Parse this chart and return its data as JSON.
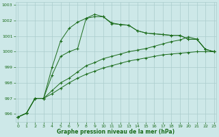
{
  "xlabel": "Graphe pression niveau de la mer (hPa)",
  "background_color": "#cde8e8",
  "grid_color": "#aacccc",
  "line_color": "#1a6b1a",
  "ylim": [
    995.5,
    1003.2
  ],
  "xlim": [
    -0.3,
    23.3
  ],
  "yticks": [
    996,
    997,
    998,
    999,
    1000,
    1001,
    1002,
    1003
  ],
  "xticks": [
    0,
    1,
    2,
    3,
    4,
    5,
    6,
    7,
    8,
    9,
    10,
    11,
    12,
    13,
    14,
    15,
    16,
    17,
    18,
    19,
    20,
    21,
    22,
    23
  ],
  "series": [
    [
      995.8,
      996.05,
      997.0,
      997.0,
      999.0,
      1000.7,
      1001.5,
      1001.9,
      1002.15,
      1002.4,
      1002.25,
      1001.8,
      1001.75,
      1001.7,
      1001.35,
      1001.2,
      1001.15,
      1001.1,
      1001.05,
      1001.05,
      1000.8,
      1000.8,
      1000.15,
      1000.0
    ],
    [
      995.8,
      996.05,
      997.0,
      997.0,
      998.5,
      999.7,
      1000.0,
      1000.2,
      1002.15,
      1002.25,
      1002.25,
      1001.85,
      1001.75,
      1001.7,
      1001.35,
      1001.2,
      1001.15,
      1001.1,
      1001.05,
      1001.05,
      1000.8,
      1000.8,
      1000.15,
      1000.0
    ],
    [
      995.8,
      996.05,
      997.0,
      997.0,
      997.5,
      998.0,
      998.3,
      998.7,
      999.1,
      999.3,
      999.55,
      999.7,
      999.85,
      1000.0,
      1000.1,
      1000.2,
      1000.35,
      1000.5,
      1000.65,
      1000.75,
      1000.95,
      1000.8,
      1000.15,
      1000.0
    ],
    [
      995.8,
      996.05,
      997.0,
      997.0,
      997.3,
      997.65,
      998.0,
      998.3,
      998.55,
      998.75,
      998.95,
      999.1,
      999.25,
      999.4,
      999.5,
      999.6,
      999.7,
      999.8,
      999.85,
      999.9,
      999.95,
      1000.0,
      1000.0,
      1000.0
    ]
  ],
  "figsize": [
    3.2,
    2.0
  ],
  "dpi": 100
}
